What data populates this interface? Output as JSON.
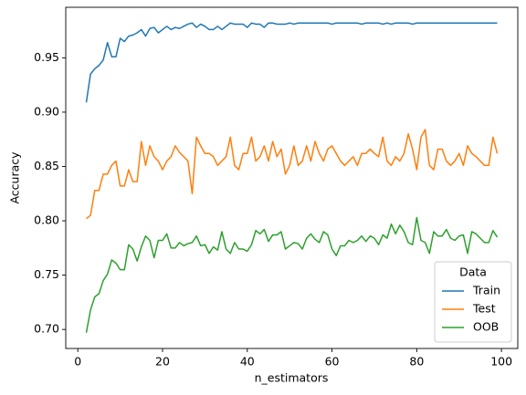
{
  "chart_data": {
    "type": "line",
    "xlabel": "n_estimators",
    "ylabel": "Accuracy",
    "x": [
      2,
      3,
      4,
      5,
      6,
      7,
      8,
      9,
      10,
      11,
      12,
      13,
      14,
      15,
      16,
      17,
      18,
      19,
      20,
      21,
      22,
      23,
      24,
      25,
      26,
      27,
      28,
      29,
      30,
      31,
      32,
      33,
      34,
      35,
      36,
      37,
      38,
      39,
      40,
      41,
      42,
      43,
      44,
      45,
      46,
      47,
      48,
      49,
      50,
      51,
      52,
      53,
      54,
      55,
      56,
      57,
      58,
      59,
      60,
      61,
      62,
      63,
      64,
      65,
      66,
      67,
      68,
      69,
      70,
      71,
      72,
      73,
      74,
      75,
      76,
      77,
      78,
      79,
      80,
      81,
      82,
      83,
      84,
      85,
      86,
      87,
      88,
      89,
      90,
      91,
      92,
      93,
      94,
      95,
      96,
      97,
      98,
      99
    ],
    "series": [
      {
        "name": "Train",
        "color": "#1f77b4",
        "values": [
          0.909,
          0.935,
          0.94,
          0.943,
          0.948,
          0.964,
          0.951,
          0.951,
          0.968,
          0.965,
          0.97,
          0.971,
          0.973,
          0.976,
          0.97,
          0.977,
          0.978,
          0.973,
          0.976,
          0.979,
          0.976,
          0.978,
          0.977,
          0.979,
          0.981,
          0.982,
          0.978,
          0.981,
          0.979,
          0.976,
          0.976,
          0.979,
          0.976,
          0.979,
          0.982,
          0.981,
          0.981,
          0.981,
          0.978,
          0.982,
          0.981,
          0.981,
          0.978,
          0.982,
          0.982,
          0.981,
          0.981,
          0.981,
          0.982,
          0.981,
          0.982,
          0.982,
          0.982,
          0.982,
          0.982,
          0.982,
          0.982,
          0.982,
          0.981,
          0.982,
          0.982,
          0.982,
          0.982,
          0.982,
          0.982,
          0.981,
          0.982,
          0.982,
          0.982,
          0.982,
          0.981,
          0.982,
          0.981,
          0.982,
          0.982,
          0.982,
          0.982,
          0.981,
          0.982,
          0.982,
          0.982,
          0.982,
          0.982,
          0.982,
          0.982,
          0.982,
          0.982,
          0.982,
          0.982,
          0.982,
          0.982,
          0.982,
          0.982,
          0.982,
          0.982,
          0.982,
          0.982,
          0.982
        ]
      },
      {
        "name": "Test",
        "color": "#ff7f0e",
        "values": [
          0.802,
          0.805,
          0.828,
          0.828,
          0.843,
          0.843,
          0.851,
          0.855,
          0.832,
          0.832,
          0.847,
          0.836,
          0.836,
          0.873,
          0.851,
          0.869,
          0.859,
          0.855,
          0.847,
          0.855,
          0.859,
          0.869,
          0.863,
          0.859,
          0.855,
          0.825,
          0.877,
          0.869,
          0.862,
          0.862,
          0.859,
          0.851,
          0.855,
          0.859,
          0.877,
          0.851,
          0.847,
          0.862,
          0.862,
          0.877,
          0.855,
          0.859,
          0.869,
          0.855,
          0.873,
          0.859,
          0.866,
          0.843,
          0.851,
          0.869,
          0.851,
          0.855,
          0.869,
          0.855,
          0.873,
          0.862,
          0.855,
          0.866,
          0.869,
          0.862,
          0.855,
          0.851,
          0.855,
          0.859,
          0.851,
          0.862,
          0.862,
          0.866,
          0.862,
          0.859,
          0.877,
          0.855,
          0.851,
          0.859,
          0.855,
          0.862,
          0.88,
          0.866,
          0.847,
          0.877,
          0.884,
          0.851,
          0.847,
          0.866,
          0.866,
          0.855,
          0.851,
          0.855,
          0.862,
          0.851,
          0.869,
          0.862,
          0.859,
          0.855,
          0.851,
          0.851,
          0.877,
          0.862
        ]
      },
      {
        "name": "OOB",
        "color": "#2ca02c",
        "values": [
          0.697,
          0.718,
          0.73,
          0.733,
          0.745,
          0.751,
          0.764,
          0.761,
          0.755,
          0.755,
          0.778,
          0.774,
          0.763,
          0.776,
          0.786,
          0.782,
          0.766,
          0.782,
          0.782,
          0.788,
          0.775,
          0.775,
          0.78,
          0.777,
          0.779,
          0.78,
          0.786,
          0.777,
          0.778,
          0.77,
          0.776,
          0.773,
          0.79,
          0.774,
          0.77,
          0.78,
          0.774,
          0.774,
          0.772,
          0.778,
          0.791,
          0.788,
          0.792,
          0.781,
          0.787,
          0.787,
          0.79,
          0.774,
          0.777,
          0.78,
          0.779,
          0.774,
          0.784,
          0.788,
          0.783,
          0.78,
          0.79,
          0.787,
          0.774,
          0.768,
          0.777,
          0.777,
          0.782,
          0.78,
          0.782,
          0.786,
          0.781,
          0.786,
          0.784,
          0.778,
          0.787,
          0.784,
          0.797,
          0.788,
          0.796,
          0.79,
          0.78,
          0.778,
          0.803,
          0.782,
          0.78,
          0.77,
          0.79,
          0.786,
          0.786,
          0.792,
          0.784,
          0.782,
          0.786,
          0.787,
          0.77,
          0.79,
          0.788,
          0.784,
          0.78,
          0.78,
          0.791,
          0.785
        ]
      }
    ],
    "xlim": [
      -2.85,
      103.85
    ],
    "xticks": [
      0,
      20,
      40,
      60,
      80,
      100
    ],
    "ylim": [
      0.6825,
      0.9965
    ],
    "yticks": [
      {
        "value": 0.7,
        "label": "0.70"
      },
      0.75,
      {
        "value": 0.8,
        "label": "0.80"
      },
      0.85,
      {
        "value": 0.9,
        "label": "0.90"
      },
      0.95
    ],
    "grid": false,
    "legend": {
      "title": "Data",
      "loc": "lower right"
    }
  }
}
